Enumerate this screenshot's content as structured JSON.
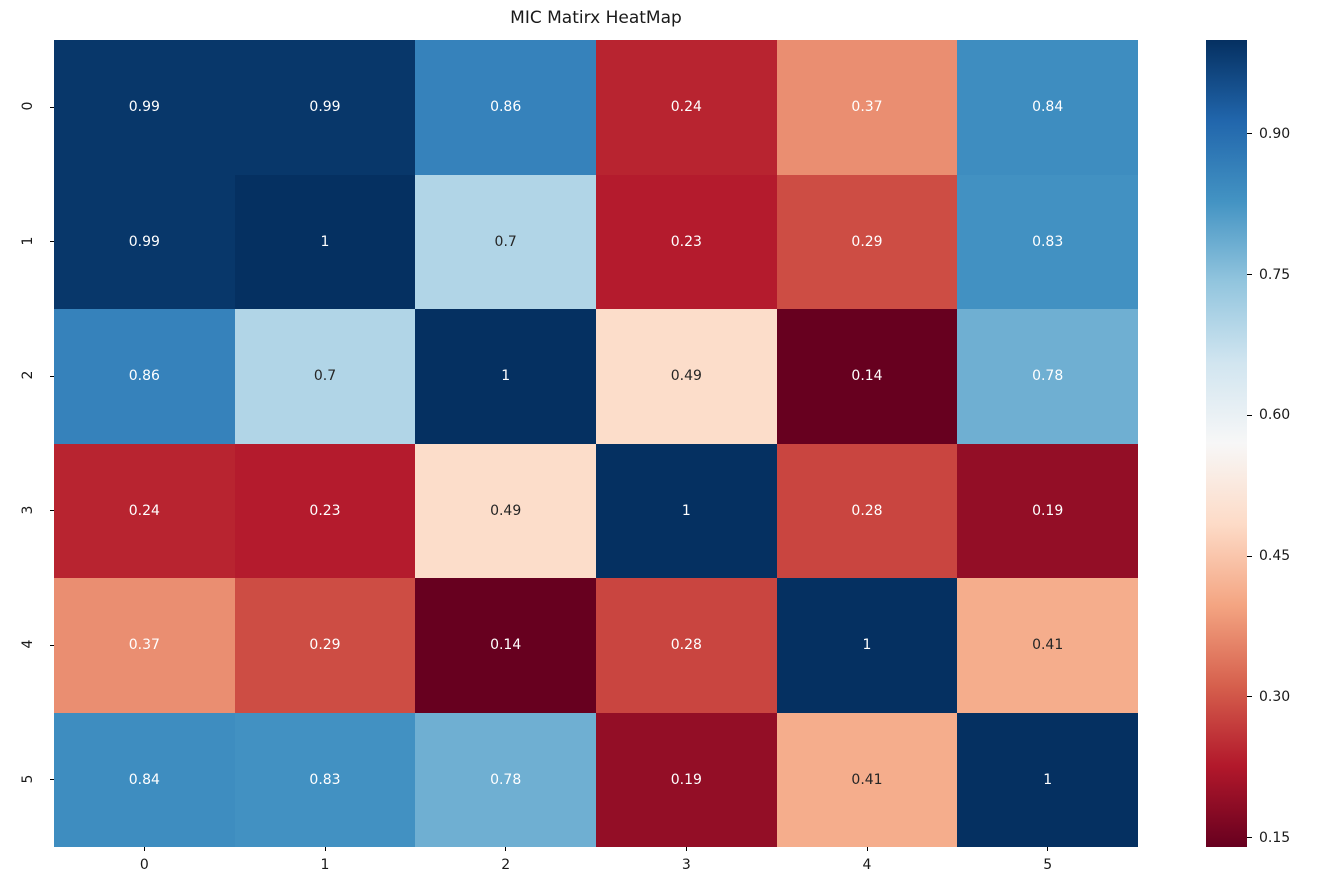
{
  "title": "MIC Matirx HeatMap",
  "chart_data": {
    "type": "heatmap",
    "title": "MIC Matirx HeatMap",
    "colormap": "RdBu",
    "vmin": 0.14,
    "vmax": 1.0,
    "x_labels": [
      "0",
      "1",
      "2",
      "3",
      "4",
      "5"
    ],
    "y_labels": [
      "0",
      "1",
      "2",
      "3",
      "4",
      "5"
    ],
    "values": [
      [
        0.99,
        0.99,
        0.86,
        0.24,
        0.37,
        0.84
      ],
      [
        0.99,
        1,
        0.7,
        0.23,
        0.29,
        0.83
      ],
      [
        0.86,
        0.7,
        1,
        0.49,
        0.14,
        0.78
      ],
      [
        0.24,
        0.23,
        0.49,
        1,
        0.28,
        0.19
      ],
      [
        0.37,
        0.29,
        0.14,
        0.28,
        1,
        0.41
      ],
      [
        0.84,
        0.83,
        0.78,
        0.19,
        0.41,
        1
      ]
    ],
    "cell_labels": [
      [
        "0.99",
        "0.99",
        "0.86",
        "0.24",
        "0.37",
        "0.84"
      ],
      [
        "0.99",
        "1",
        "0.7",
        "0.23",
        "0.29",
        "0.83"
      ],
      [
        "0.86",
        "0.7",
        "1",
        "0.49",
        "0.14",
        "0.78"
      ],
      [
        "0.24",
        "0.23",
        "0.49",
        "1",
        "0.28",
        "0.19"
      ],
      [
        "0.37",
        "0.29",
        "0.14",
        "0.28",
        "1",
        "0.41"
      ],
      [
        "0.84",
        "0.83",
        "0.78",
        "0.19",
        "0.41",
        "1"
      ]
    ],
    "cell_colors": [
      [
        "#08376a",
        "#08376a",
        "#3682bb",
        "#b82430",
        "#ea8e71",
        "#3e8dc0"
      ],
      [
        "#08376a",
        "#053061",
        "#b1d5e7",
        "#b41b2d",
        "#cd4d44",
        "#4291c2"
      ],
      [
        "#3682bb",
        "#b1d5e7",
        "#053061",
        "#fcddca",
        "#67001f",
        "#6fafd2"
      ],
      [
        "#b82430",
        "#b41b2d",
        "#fcddca",
        "#053061",
        "#c94540",
        "#930e26"
      ],
      [
        "#ea8e71",
        "#cd4d44",
        "#67001f",
        "#c94540",
        "#053061",
        "#f5ad8c"
      ],
      [
        "#3e8dc0",
        "#4291c2",
        "#6fafd2",
        "#930e26",
        "#f5ad8c",
        "#053061"
      ]
    ],
    "cell_text_colors": [
      [
        "#ffffff",
        "#ffffff",
        "#ffffff",
        "#ffffff",
        "#ffffff",
        "#ffffff"
      ],
      [
        "#ffffff",
        "#ffffff",
        "#262626",
        "#ffffff",
        "#ffffff",
        "#ffffff"
      ],
      [
        "#ffffff",
        "#262626",
        "#ffffff",
        "#262626",
        "#ffffff",
        "#ffffff"
      ],
      [
        "#ffffff",
        "#ffffff",
        "#262626",
        "#ffffff",
        "#ffffff",
        "#ffffff"
      ],
      [
        "#ffffff",
        "#ffffff",
        "#ffffff",
        "#ffffff",
        "#ffffff",
        "#262626"
      ],
      [
        "#ffffff",
        "#ffffff",
        "#ffffff",
        "#ffffff",
        "#262626",
        "#ffffff"
      ]
    ],
    "colorbar": {
      "tick_labels": [
        "0.90",
        "0.75",
        "0.60",
        "0.45",
        "0.30",
        "0.15"
      ],
      "tick_values": [
        0.9,
        0.75,
        0.6,
        0.45,
        0.3,
        0.15
      ],
      "gradient_top_to_bottom": [
        "#053061",
        "#2166ac",
        "#4393c3",
        "#92c5de",
        "#d1e5f0",
        "#f7f7f7",
        "#fddbc7",
        "#f4a582",
        "#d6604d",
        "#b2182b",
        "#67001f"
      ]
    }
  }
}
